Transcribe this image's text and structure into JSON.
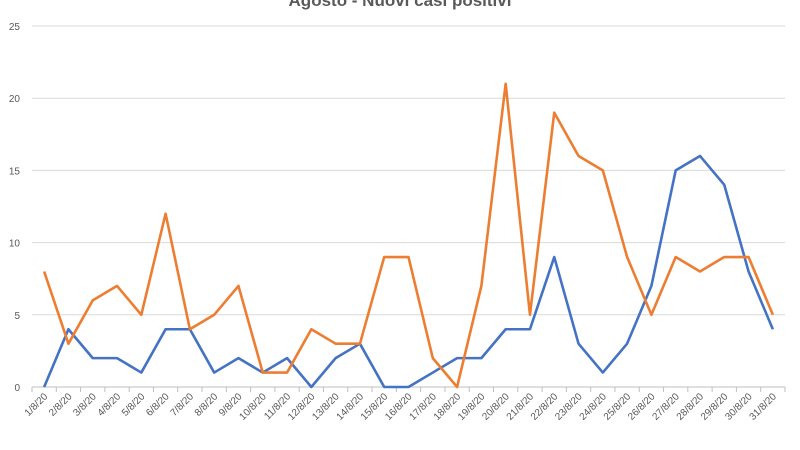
{
  "chart_data": {
    "type": "line",
    "title": "Agosto - Nuovi casi positivi",
    "xlabel": "",
    "ylabel": "",
    "ylim": [
      0,
      25
    ],
    "yticks": [
      0,
      5,
      10,
      15,
      20,
      25
    ],
    "grid": true,
    "legend": "none",
    "categories": [
      "1/8/20",
      "2/8/20",
      "3/8/20",
      "4/8/20",
      "5/8/20",
      "6/8/20",
      "7/8/20",
      "8/8/20",
      "9/8/20",
      "10/8/20",
      "11/8/20",
      "12/8/20",
      "13/8/20",
      "14/8/20",
      "15/8/20",
      "16/8/20",
      "17/8/20",
      "18/8/20",
      "19/8/20",
      "20/8/20",
      "21/8/20",
      "22/8/20",
      "23/8/20",
      "24/8/20",
      "25/8/20",
      "26/8/20",
      "27/8/20",
      "28/8/20",
      "29/8/20",
      "30/8/20",
      "31/8/20"
    ],
    "series": [
      {
        "color": "#4472c4",
        "values": [
          0,
          4,
          2,
          2,
          1,
          4,
          4,
          1,
          2,
          1,
          2,
          0,
          2,
          3,
          0,
          0,
          1,
          2,
          2,
          4,
          4,
          9,
          3,
          1,
          3,
          7,
          15,
          16,
          14,
          8,
          4
        ]
      },
      {
        "color": "#ed7d31",
        "values": [
          8,
          3,
          6,
          7,
          5,
          12,
          4,
          5,
          7,
          1,
          1,
          4,
          3,
          3,
          9,
          9,
          2,
          0,
          7,
          21,
          5,
          19,
          16,
          15,
          9,
          5,
          9,
          8,
          9,
          9,
          5
        ]
      }
    ]
  }
}
